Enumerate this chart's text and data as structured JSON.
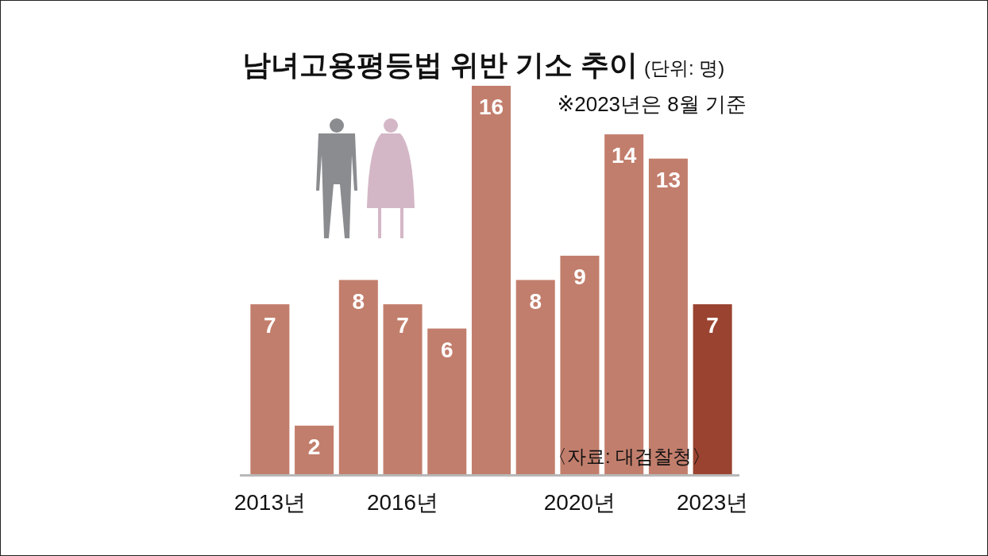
{
  "chart_data": {
    "type": "bar",
    "title": "남녀고용평등법 위반 기소 추이",
    "subtitle": "(단위: 명)",
    "categories": [
      "2013년",
      null,
      null,
      "2016년",
      null,
      null,
      null,
      "2020년",
      null,
      null,
      "2023년"
    ],
    "values": [
      7,
      2,
      8,
      7,
      6,
      16,
      8,
      9,
      14,
      13,
      7
    ],
    "colors": [
      "#c27e6c",
      "#c27e6c",
      "#c27e6c",
      "#c27e6c",
      "#c27e6c",
      "#c27e6c",
      "#c27e6c",
      "#c27e6c",
      "#c27e6c",
      "#c27e6c",
      "#9a4330"
    ],
    "data_labels": true,
    "annotations": [
      "※2023년은 8월 기준",
      "〈자료: 대검찰청〉"
    ]
  }
}
